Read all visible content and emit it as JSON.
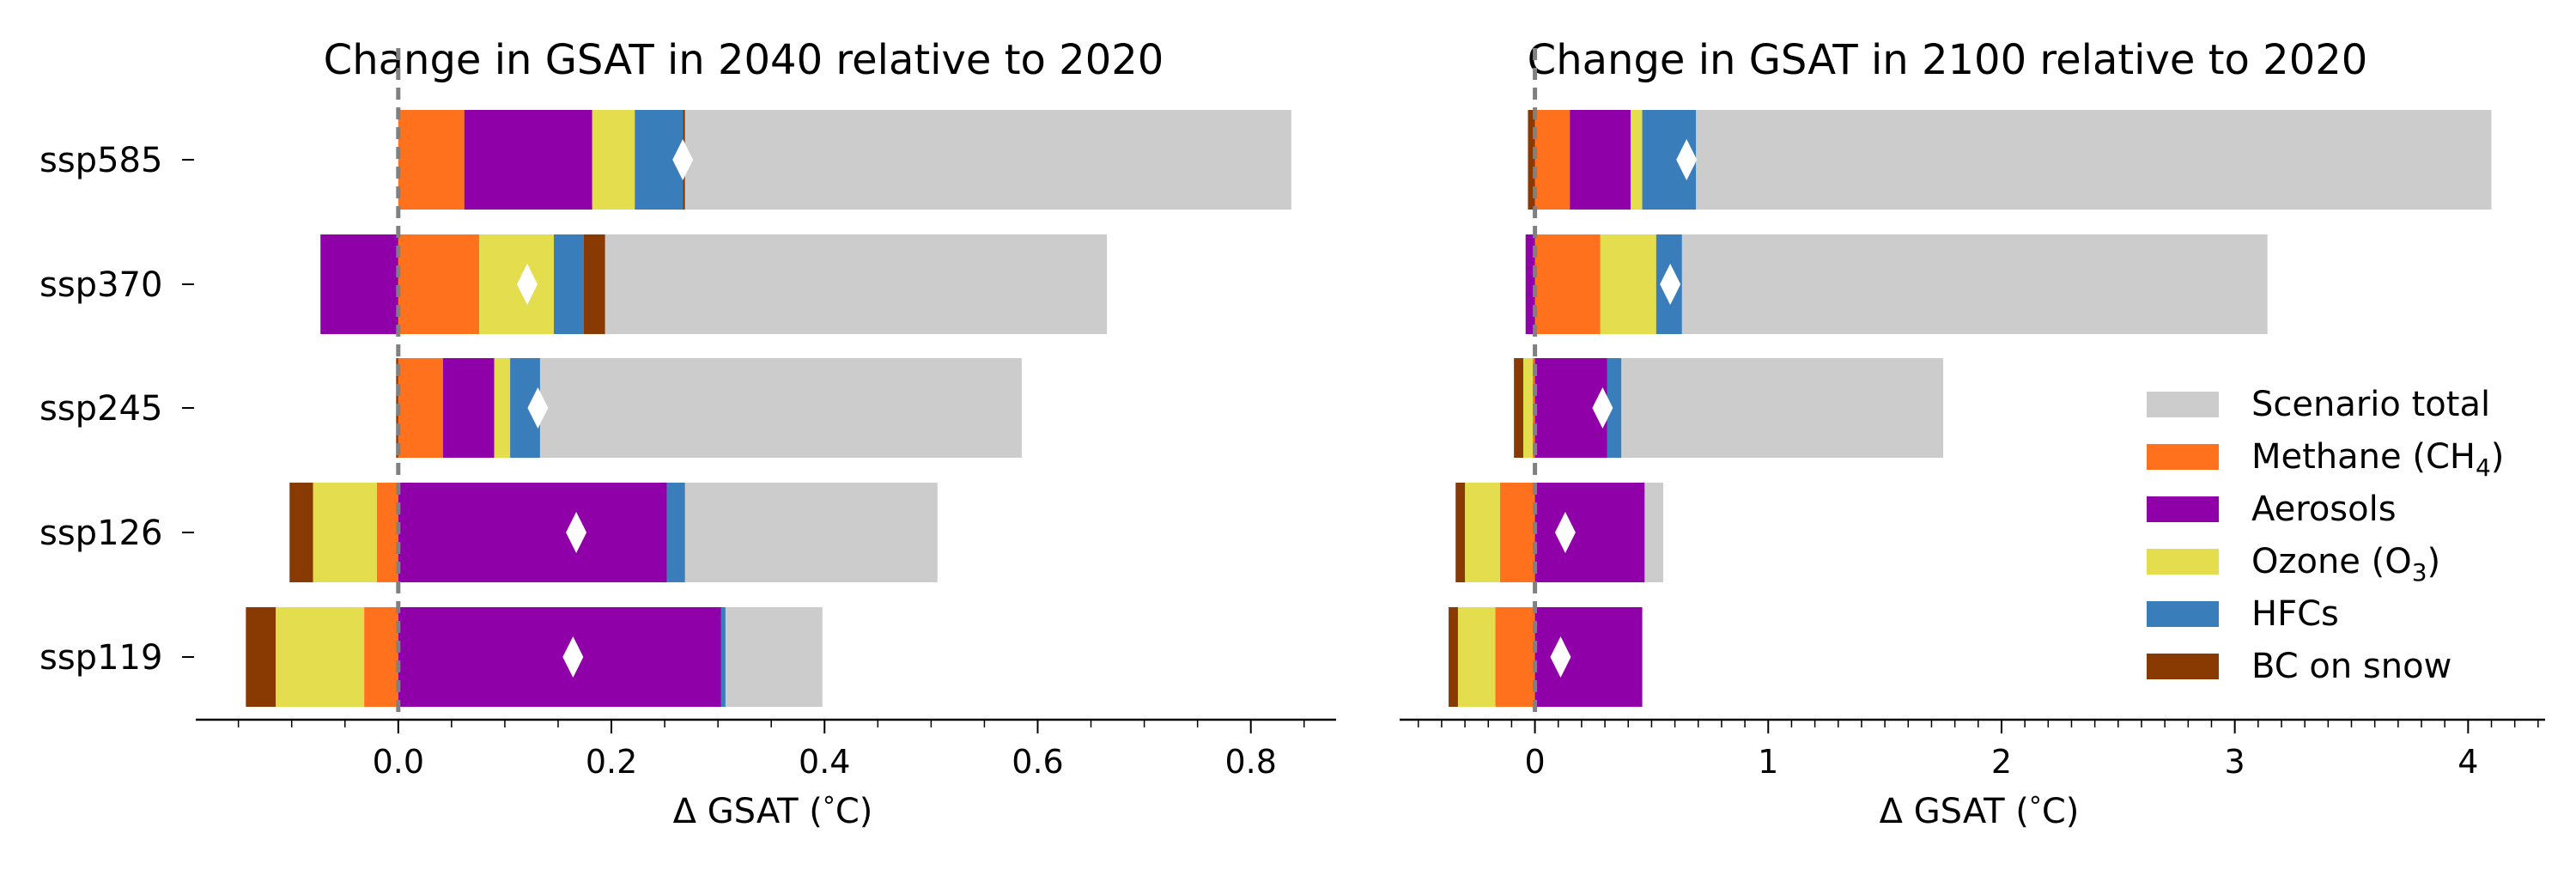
{
  "chart_data": [
    {
      "type": "bar",
      "orientation": "horizontal",
      "stacked": true,
      "title": "Change in GSAT in 2040 relative to 2020",
      "xlabel": "Δ GSAT (°C)",
      "xlabel_prefix": "Δ GSAT (",
      "xlabel_unit": "°C",
      "xlabel_suffix": ")",
      "categories": [
        "ssp585",
        "ssp370",
        "ssp245",
        "ssp126",
        "ssp119"
      ],
      "xlim": [
        -0.19,
        0.88
      ],
      "xticks": [
        0.0,
        0.2,
        0.4,
        0.6,
        0.8
      ],
      "xtick_labels": [
        "0.0",
        "0.2",
        "0.4",
        "0.6",
        "0.8"
      ],
      "minor_tick_step": 0.05,
      "zero_line": "dashed",
      "scenario_total": [
        0.838,
        0.665,
        0.585,
        0.506,
        0.398
      ],
      "series": [
        {
          "key": "methane",
          "values": [
            0.062,
            0.076,
            0.042,
            -0.02,
            -0.032
          ]
        },
        {
          "key": "aerosols",
          "values": [
            0.12,
            -0.073,
            0.048,
            0.252,
            0.303
          ]
        },
        {
          "key": "ozone",
          "values": [
            0.04,
            0.07,
            0.015,
            -0.06,
            -0.083
          ]
        },
        {
          "key": "hfcs",
          "values": [
            0.045,
            0.028,
            0.028,
            0.017,
            0.004
          ]
        },
        {
          "key": "bc_on_snow",
          "values": [
            0.002,
            0.02,
            -0.002,
            -0.022,
            -0.028
          ]
        }
      ],
      "net_marker": [
        0.267,
        0.121,
        0.131,
        0.167,
        0.164
      ]
    },
    {
      "type": "bar",
      "orientation": "horizontal",
      "stacked": true,
      "title": "Change in GSAT in 2100 relative to 2020",
      "xlabel": "Δ GSAT (°C)",
      "xlabel_prefix": "Δ GSAT (",
      "xlabel_unit": "°C",
      "xlabel_suffix": ")",
      "categories": [
        "ssp585",
        "ssp370",
        "ssp245",
        "ssp126",
        "ssp119"
      ],
      "xlim": [
        -0.58,
        4.33
      ],
      "xticks": [
        0,
        1,
        2,
        3,
        4
      ],
      "xtick_labels": [
        "0",
        "1",
        "2",
        "3",
        "4"
      ],
      "minor_tick_step": 0.1,
      "zero_line": "dashed",
      "scenario_total": [
        4.1,
        3.14,
        1.75,
        0.55,
        0.11
      ],
      "series": [
        {
          "key": "methane",
          "values": [
            0.15,
            0.28,
            -0.01,
            -0.15,
            -0.17
          ]
        },
        {
          "key": "aerosols",
          "values": [
            0.26,
            -0.04,
            0.31,
            0.47,
            0.46
          ]
        },
        {
          "key": "ozone",
          "values": [
            0.05,
            0.24,
            -0.04,
            -0.15,
            -0.16
          ]
        },
        {
          "key": "hfcs",
          "values": [
            0.23,
            0.11,
            0.06,
            0.0,
            0.0
          ]
        },
        {
          "key": "bc_on_snow",
          "values": [
            -0.03,
            0.0,
            -0.04,
            -0.04,
            -0.04
          ]
        }
      ],
      "net_marker": [
        0.65,
        0.58,
        0.29,
        0.13,
        0.11
      ]
    }
  ],
  "legend": {
    "placement": "right",
    "items": [
      {
        "key": "total",
        "label": "Scenario total",
        "sub": "",
        "suffix": "",
        "color": "#cccccc"
      },
      {
        "key": "methane",
        "label": "Methane (CH",
        "sub": "4",
        "suffix": ")",
        "color": "#ff711d"
      },
      {
        "key": "aerosols",
        "label": "Aerosols",
        "sub": "",
        "suffix": "",
        "color": "#9000a9"
      },
      {
        "key": "ozone",
        "label": "Ozone (O",
        "sub": "3",
        "suffix": ")",
        "color": "#e4dd4e"
      },
      {
        "key": "hfcs",
        "label": "HFCs",
        "sub": "",
        "suffix": "",
        "color": "#3a7dbb"
      },
      {
        "key": "bc_on_snow",
        "label": "BC on snow",
        "sub": "",
        "suffix": "",
        "color": "#893a03"
      }
    ]
  },
  "colors": {
    "total": "#cccccc",
    "methane": "#ff711d",
    "aerosols": "#9000a9",
    "ozone": "#e4dd4e",
    "hfcs": "#3a7dbb",
    "bc_on_snow": "#893a03",
    "marker": "#ffffff",
    "zero_line": "#808080"
  }
}
